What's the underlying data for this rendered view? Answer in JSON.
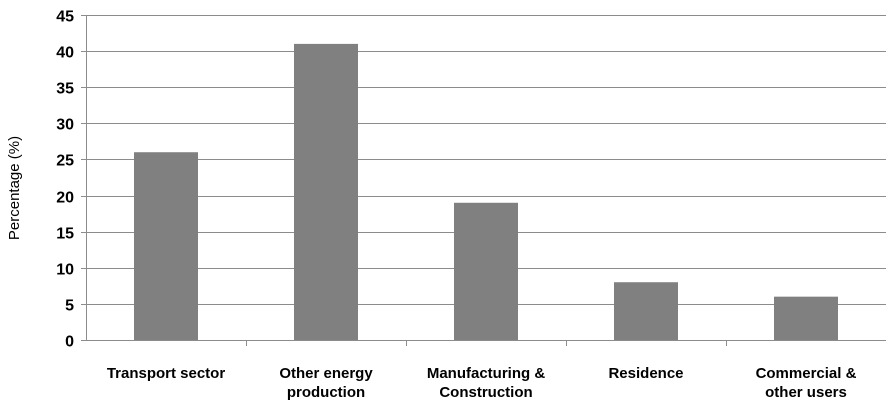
{
  "chart_data": {
    "type": "bar",
    "title": "",
    "xlabel": "",
    "ylabel": "Percentage (%)",
    "categories": [
      [
        "Transport sector"
      ],
      [
        "Other energy",
        "production"
      ],
      [
        "Manufacturing &",
        "Construction"
      ],
      [
        "Residence"
      ],
      [
        "Commercial &",
        "other users"
      ]
    ],
    "values": [
      26,
      41,
      19,
      8,
      6
    ],
    "ylim": [
      0,
      45
    ],
    "yticks": [
      0,
      5,
      10,
      15,
      20,
      25,
      30,
      35,
      40,
      45
    ],
    "grid": true,
    "legend": "none",
    "colors": {
      "bar": "#808080",
      "grid": "#8c8c8c",
      "axis": "#8c8c8c",
      "text": "#000000"
    }
  }
}
